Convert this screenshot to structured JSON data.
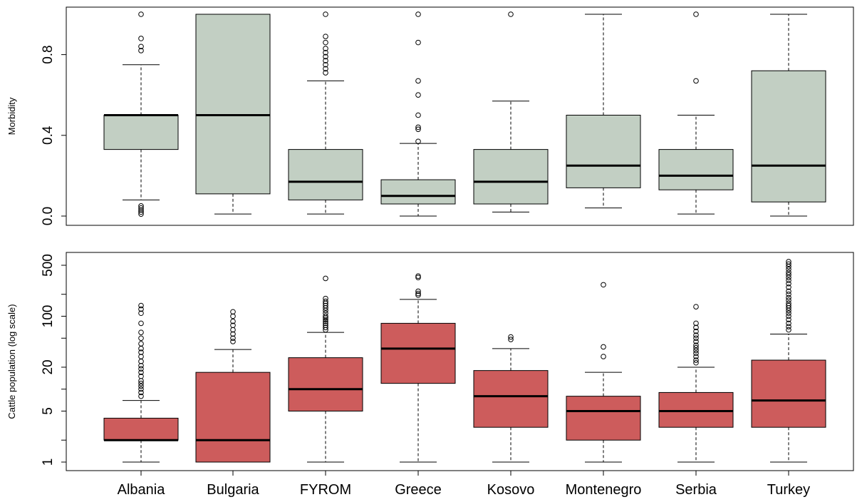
{
  "chart_data": [
    {
      "type": "box",
      "ylabel": "Morbidity",
      "ylim": [
        0,
        1
      ],
      "yscale": "linear",
      "yticks": [
        0.0,
        0.4,
        0.8
      ],
      "ytick_labels": [
        "0.0",
        "0.4",
        "0.8"
      ],
      "box_color": "#c2cfc3",
      "categories": [
        "Albania",
        "Bulgaria",
        "FYROM",
        "Greece",
        "Kosovo",
        "Montenegro",
        "Serbia",
        "Turkey"
      ],
      "boxes": [
        {
          "q1": 0.33,
          "median": 0.5,
          "q3": 0.5,
          "whisker_low": 0.08,
          "whisker_high": 0.75,
          "outliers": [
            1.0,
            0.88,
            0.84,
            0.82,
            0.05,
            0.04,
            0.03,
            0.02,
            0.01
          ]
        },
        {
          "q1": 0.11,
          "median": 0.5,
          "q3": 1.0,
          "whisker_low": 0.01,
          "whisker_high": 1.0,
          "outliers": []
        },
        {
          "q1": 0.08,
          "median": 0.17,
          "q3": 0.33,
          "whisker_low": 0.01,
          "whisker_high": 0.67,
          "outliers": [
            1.0,
            0.89,
            0.86,
            0.83,
            0.81,
            0.79,
            0.77,
            0.75,
            0.73,
            0.71
          ]
        },
        {
          "q1": 0.06,
          "median": 0.1,
          "q3": 0.18,
          "whisker_low": 0.0,
          "whisker_high": 0.36,
          "outliers": [
            1.0,
            0.86,
            0.67,
            0.6,
            0.5,
            0.44,
            0.43,
            0.37
          ]
        },
        {
          "q1": 0.06,
          "median": 0.17,
          "q3": 0.33,
          "whisker_low": 0.02,
          "whisker_high": 0.57,
          "outliers": [
            1.0
          ]
        },
        {
          "q1": 0.14,
          "median": 0.25,
          "q3": 0.5,
          "whisker_low": 0.04,
          "whisker_high": 1.0,
          "outliers": []
        },
        {
          "q1": 0.13,
          "median": 0.2,
          "q3": 0.33,
          "whisker_low": 0.01,
          "whisker_high": 0.5,
          "outliers": [
            1.0,
            0.67
          ]
        },
        {
          "q1": 0.07,
          "median": 0.25,
          "q3": 0.72,
          "whisker_low": 0.0,
          "whisker_high": 1.0,
          "outliers": []
        }
      ]
    },
    {
      "type": "box",
      "ylabel": "Cattle population (log scale)",
      "ylim": [
        0.85,
        650
      ],
      "yscale": "log",
      "yticks": [
        1,
        5,
        20,
        100,
        500
      ],
      "ytick_labels": [
        "1",
        "5",
        "20",
        "100",
        "500"
      ],
      "minor_yticks": [
        2,
        10,
        50,
        200
      ],
      "box_color": "#cd5c5c",
      "categories": [
        "Albania",
        "Bulgaria",
        "FYROM",
        "Greece",
        "Kosovo",
        "Montenegro",
        "Serbia",
        "Turkey"
      ],
      "boxes": [
        {
          "q1": 2,
          "median": 2,
          "q3": 4,
          "whisker_low": 1,
          "whisker_high": 7,
          "outliers": [
            140,
            125,
            110,
            80,
            60,
            50,
            42,
            36,
            32,
            28,
            24,
            21,
            19,
            17,
            15,
            13,
            12,
            11,
            10,
            9,
            8
          ]
        },
        {
          "q1": 1,
          "median": 2,
          "q3": 17,
          "whisker_low": 1,
          "whisker_high": 35,
          "outliers": [
            115,
            100,
            85,
            75,
            65,
            57,
            50,
            45
          ]
        },
        {
          "q1": 5,
          "median": 10,
          "q3": 27,
          "whisker_low": 1,
          "whisker_high": 60,
          "outliers": [
            330,
            175,
            160,
            150,
            140,
            130,
            120,
            110,
            100,
            95,
            90,
            85,
            80,
            75,
            70,
            65
          ]
        },
        {
          "q1": 12,
          "median": 36,
          "q3": 80,
          "whisker_low": 1,
          "whisker_high": 170,
          "outliers": [
            355,
            340,
            220,
            205,
            195
          ]
        },
        {
          "q1": 3,
          "median": 8,
          "q3": 18,
          "whisker_low": 1,
          "whisker_high": 36,
          "outliers": [
            52,
            48
          ]
        },
        {
          "q1": 2,
          "median": 5,
          "q3": 8,
          "whisker_low": 1,
          "whisker_high": 17,
          "outliers": [
            270,
            38,
            28
          ]
        },
        {
          "q1": 3,
          "median": 5,
          "q3": 9,
          "whisker_low": 1,
          "whisker_high": 20,
          "outliers": [
            135,
            80,
            70,
            62,
            55,
            50,
            45,
            40,
            37,
            34,
            31,
            28,
            25,
            23
          ]
        },
        {
          "q1": 3,
          "median": 7,
          "q3": 25,
          "whisker_low": 1,
          "whisker_high": 57,
          "outliers": [
            560,
            520,
            480,
            440,
            400,
            370,
            340,
            310,
            280,
            250,
            220,
            200,
            180,
            165,
            150,
            140,
            130,
            120,
            110,
            100,
            90,
            80,
            72,
            65
          ]
        }
      ]
    }
  ]
}
